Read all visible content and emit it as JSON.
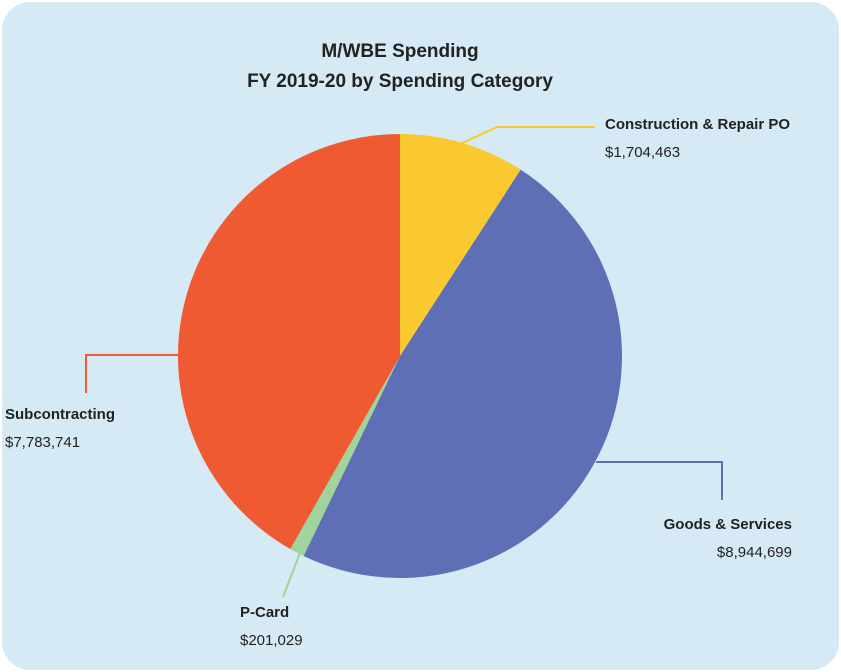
{
  "chart_data": {
    "type": "pie",
    "title": "M/WBE Spending",
    "subtitle": "FY 2019-20 by Spending Category",
    "categories": [
      "Construction & Repair PO",
      "Goods & Services",
      "P-Card",
      "Subcontracting"
    ],
    "values": [
      1704463,
      8944699,
      201029,
      7783741
    ],
    "value_labels": [
      "$1,704,463",
      "$8,944,699",
      "$201,029",
      "$7,783,741"
    ],
    "colors": [
      "#f9c92f",
      "#5e6fb5",
      "#9fd49a",
      "#ef5a33"
    ]
  }
}
